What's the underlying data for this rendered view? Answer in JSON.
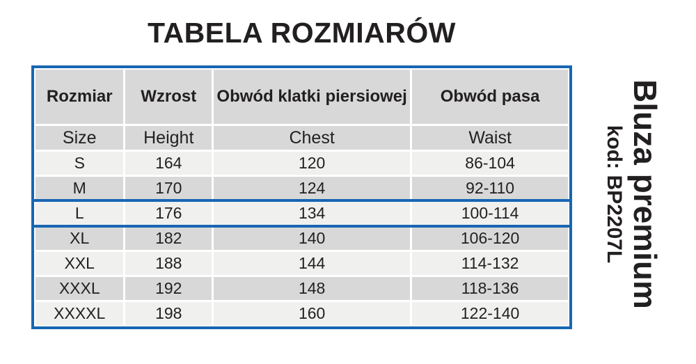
{
  "title": "TABELA ROZMIARÓW",
  "table": {
    "headers_pl": [
      "Rozmiar",
      "Wzrost",
      "Obwód klatki piersiowej",
      "Obwód pasa"
    ],
    "headers_en": [
      "Size",
      "Height",
      "Chest",
      "Waist"
    ],
    "rows": [
      [
        "S",
        "164",
        "120",
        "86-104"
      ],
      [
        "M",
        "170",
        "124",
        "92-110"
      ],
      [
        "L",
        "176",
        "134",
        "100-114"
      ],
      [
        "XL",
        "182",
        "140",
        "106-120"
      ],
      [
        "XXL",
        "188",
        "144",
        "114-132"
      ],
      [
        "XXXL",
        "192",
        "148",
        "118-136"
      ],
      [
        "XXXXL",
        "198",
        "160",
        "122-140"
      ]
    ],
    "highlighted_size": "L"
  },
  "side_label": {
    "product": "Bluza premium",
    "code": "kod: BP2207L"
  },
  "colors": {
    "accent_blue": "#1766b3",
    "cell_gray": "#d8d8d8",
    "cell_light": "#f0f0ef",
    "text_dark": "#221f20"
  }
}
